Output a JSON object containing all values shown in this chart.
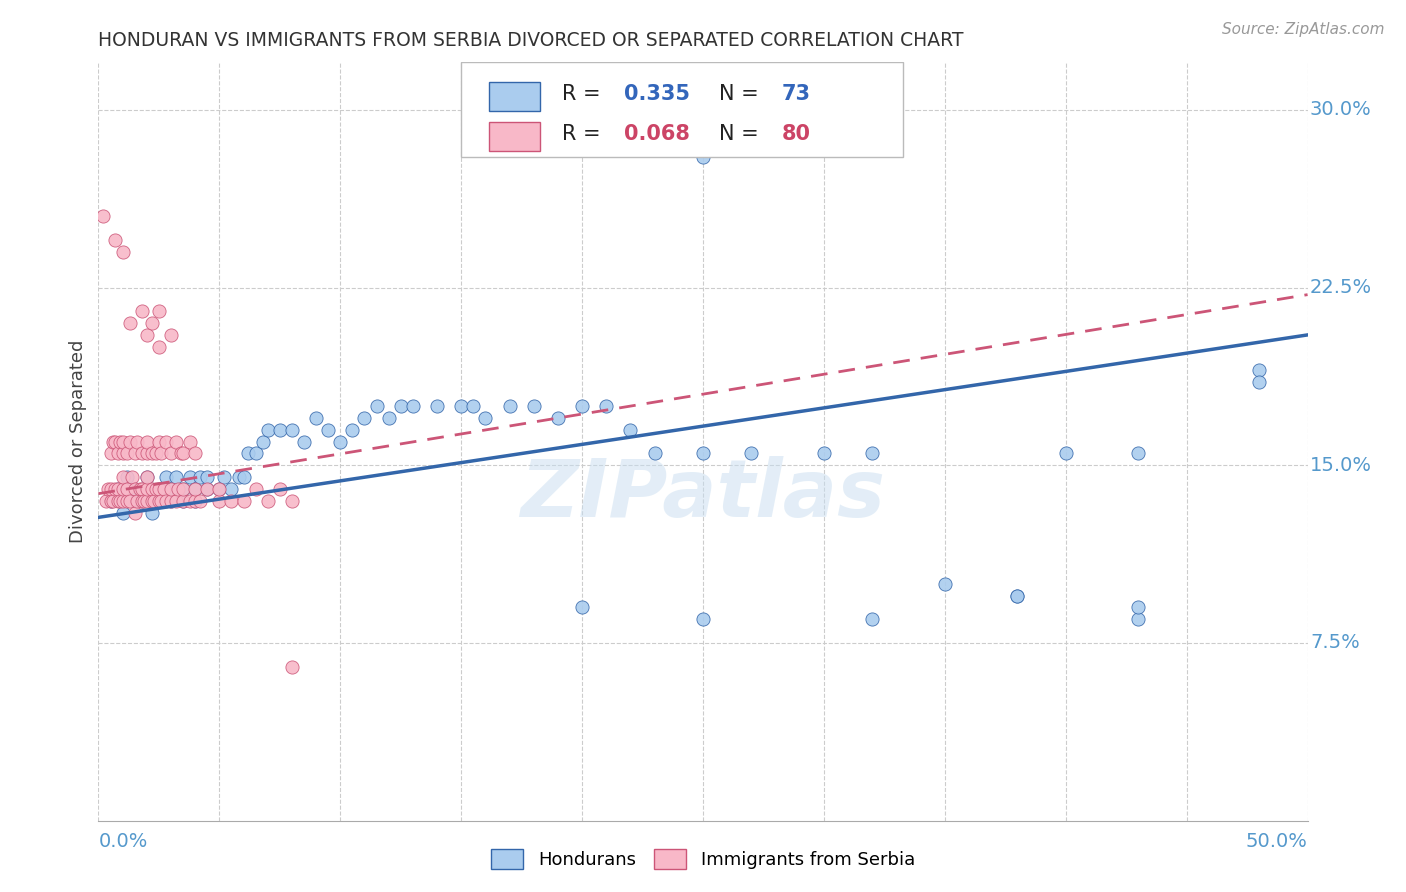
{
  "title": "HONDURAN VS IMMIGRANTS FROM SERBIA DIVORCED OR SEPARATED CORRELATION CHART",
  "source": "Source: ZipAtlas.com",
  "ylabel": "Divorced or Separated",
  "watermark": "ZIPatlas",
  "xlim": [
    0.0,
    0.5
  ],
  "ylim": [
    0.0,
    0.32
  ],
  "xticks": [
    0.0,
    0.05,
    0.1,
    0.15,
    0.2,
    0.25,
    0.3,
    0.35,
    0.4,
    0.45,
    0.5
  ],
  "yticks": [
    0.075,
    0.15,
    0.225,
    0.3
  ],
  "ytick_labels": [
    "7.5%",
    "15.0%",
    "22.5%",
    "30.0%"
  ],
  "blue_color": "#aaccee",
  "pink_color": "#f8b8c8",
  "blue_line_color": "#3366aa",
  "pink_line_color": "#cc5577",
  "blue_r": "0.335",
  "blue_n": "73",
  "pink_r": "0.068",
  "pink_n": "80",
  "blue_regression": [
    0.0,
    0.5,
    0.128,
    0.205
  ],
  "pink_regression": [
    0.0,
    0.5,
    0.138,
    0.222
  ],
  "hondurans_x": [
    0.005,
    0.008,
    0.01,
    0.012,
    0.015,
    0.015,
    0.018,
    0.02,
    0.02,
    0.022,
    0.025,
    0.025,
    0.028,
    0.03,
    0.03,
    0.032,
    0.035,
    0.035,
    0.038,
    0.04,
    0.04,
    0.042,
    0.045,
    0.045,
    0.05,
    0.052,
    0.055,
    0.058,
    0.06,
    0.062,
    0.065,
    0.068,
    0.07,
    0.075,
    0.08,
    0.085,
    0.09,
    0.095,
    0.1,
    0.105,
    0.11,
    0.115,
    0.12,
    0.125,
    0.13,
    0.14,
    0.15,
    0.155,
    0.16,
    0.17,
    0.18,
    0.19,
    0.2,
    0.21,
    0.22,
    0.23,
    0.25,
    0.27,
    0.3,
    0.32,
    0.35,
    0.38,
    0.4,
    0.43,
    0.48,
    0.48,
    0.25,
    0.38,
    0.43,
    0.43,
    0.32,
    0.25,
    0.2
  ],
  "hondurans_y": [
    0.135,
    0.14,
    0.13,
    0.145,
    0.14,
    0.135,
    0.135,
    0.14,
    0.145,
    0.13,
    0.135,
    0.14,
    0.145,
    0.135,
    0.14,
    0.145,
    0.14,
    0.135,
    0.145,
    0.14,
    0.135,
    0.145,
    0.14,
    0.145,
    0.14,
    0.145,
    0.14,
    0.145,
    0.145,
    0.155,
    0.155,
    0.16,
    0.165,
    0.165,
    0.165,
    0.16,
    0.17,
    0.165,
    0.16,
    0.165,
    0.17,
    0.175,
    0.17,
    0.175,
    0.175,
    0.175,
    0.175,
    0.175,
    0.17,
    0.175,
    0.175,
    0.17,
    0.175,
    0.175,
    0.165,
    0.155,
    0.155,
    0.155,
    0.155,
    0.155,
    0.1,
    0.095,
    0.155,
    0.155,
    0.19,
    0.185,
    0.28,
    0.095,
    0.085,
    0.09,
    0.085,
    0.085,
    0.09
  ],
  "serbia_x": [
    0.003,
    0.004,
    0.005,
    0.005,
    0.006,
    0.007,
    0.008,
    0.008,
    0.009,
    0.01,
    0.01,
    0.01,
    0.012,
    0.012,
    0.013,
    0.014,
    0.015,
    0.015,
    0.016,
    0.017,
    0.018,
    0.018,
    0.019,
    0.02,
    0.02,
    0.02,
    0.022,
    0.022,
    0.023,
    0.024,
    0.025,
    0.025,
    0.026,
    0.027,
    0.028,
    0.03,
    0.03,
    0.032,
    0.033,
    0.035,
    0.035,
    0.038,
    0.04,
    0.04,
    0.042,
    0.045,
    0.05,
    0.05,
    0.055,
    0.06,
    0.065,
    0.07,
    0.075,
    0.08,
    0.005,
    0.006,
    0.007,
    0.008,
    0.009,
    0.01,
    0.01,
    0.012,
    0.013,
    0.015,
    0.016,
    0.018,
    0.02,
    0.02,
    0.022,
    0.024,
    0.025,
    0.026,
    0.028,
    0.03,
    0.032,
    0.034,
    0.035,
    0.038,
    0.04,
    0.08
  ],
  "serbia_y": [
    0.135,
    0.14,
    0.135,
    0.14,
    0.135,
    0.14,
    0.135,
    0.14,
    0.135,
    0.135,
    0.14,
    0.145,
    0.135,
    0.14,
    0.135,
    0.145,
    0.13,
    0.14,
    0.135,
    0.14,
    0.135,
    0.14,
    0.135,
    0.135,
    0.14,
    0.145,
    0.135,
    0.14,
    0.135,
    0.14,
    0.135,
    0.14,
    0.135,
    0.14,
    0.135,
    0.135,
    0.14,
    0.135,
    0.14,
    0.135,
    0.14,
    0.135,
    0.135,
    0.14,
    0.135,
    0.14,
    0.135,
    0.14,
    0.135,
    0.135,
    0.14,
    0.135,
    0.14,
    0.135,
    0.155,
    0.16,
    0.16,
    0.155,
    0.16,
    0.155,
    0.16,
    0.155,
    0.16,
    0.155,
    0.16,
    0.155,
    0.155,
    0.16,
    0.155,
    0.155,
    0.16,
    0.155,
    0.16,
    0.155,
    0.16,
    0.155,
    0.155,
    0.16,
    0.155,
    0.065
  ],
  "serbia_outliers_x": [
    0.002,
    0.007,
    0.01,
    0.013,
    0.018,
    0.02,
    0.022,
    0.025,
    0.025,
    0.03
  ],
  "serbia_outliers_y": [
    0.255,
    0.245,
    0.24,
    0.21,
    0.215,
    0.205,
    0.21,
    0.2,
    0.215,
    0.205
  ]
}
